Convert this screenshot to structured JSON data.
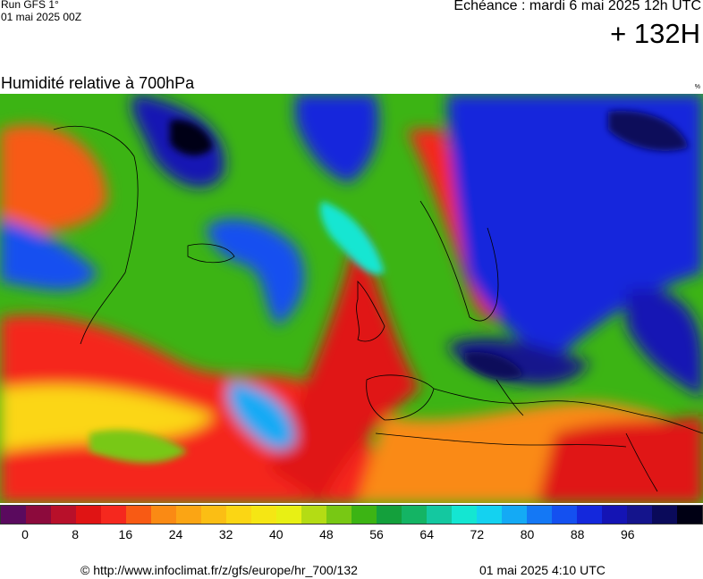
{
  "header": {
    "run_model": "Run GFS 1°",
    "run_date": "01 mai 2025 00Z",
    "valid_time": "Echéance : mardi 6 mai 2025 12h UTC",
    "lead_time": "+ 132H"
  },
  "map": {
    "title": "Humidité relative à 700hPa",
    "unit": "%",
    "region": "europe"
  },
  "legend": {
    "colors": [
      "#5a0a5e",
      "#8c0a3c",
      "#b8102a",
      "#e01414",
      "#f5281e",
      "#f85a14",
      "#fa8a14",
      "#fba514",
      "#fbbe14",
      "#fbd614",
      "#f5e614",
      "#e8f014",
      "#b4dc14",
      "#78c814",
      "#3cb414",
      "#14a03c",
      "#14b464",
      "#14c8a0",
      "#14e6d2",
      "#14d2f0",
      "#14aaf5",
      "#1478f5",
      "#1450f0",
      "#1428dc",
      "#1414b4",
      "#14148c",
      "#0a0a5a",
      "#000014"
    ],
    "tick_labels": [
      "0",
      "8",
      "16",
      "24",
      "32",
      "40",
      "48",
      "56",
      "64",
      "72",
      "80",
      "88",
      "96"
    ]
  },
  "footer": {
    "source": "© http://www.infoclimat.fr/z/gfs/europe/hr_700/132",
    "generated": "01 mai 2025  4:10 UTC"
  }
}
